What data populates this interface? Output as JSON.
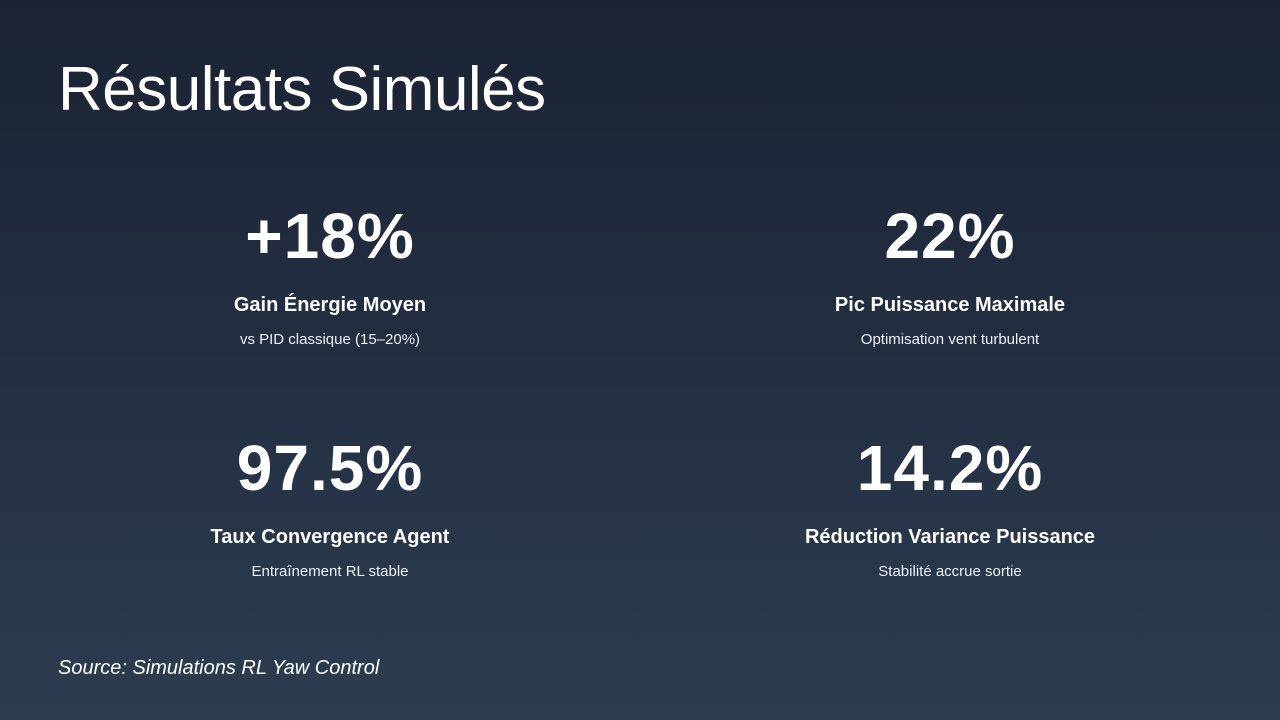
{
  "slide": {
    "title": "Résultats Simulés",
    "stats": [
      {
        "value": "+18%",
        "label": "Gain Énergie Moyen",
        "sub": "vs PID classique (15–20%)"
      },
      {
        "value": "22%",
        "label": "Pic Puissance Maximale",
        "sub": "Optimisation vent turbulent"
      },
      {
        "value": "97.5%",
        "label": "Taux Convergence Agent",
        "sub": "Entraînement RL stable"
      },
      {
        "value": "14.2%",
        "label": "Réduction Variance Puissance",
        "sub": "Stabilité accrue sortie"
      }
    ],
    "source": "Source: Simulations RL Yaw Control"
  },
  "colors": {
    "background_top": "#1b2333",
    "background_bottom": "#2d3d50",
    "text": "#ffffff"
  }
}
